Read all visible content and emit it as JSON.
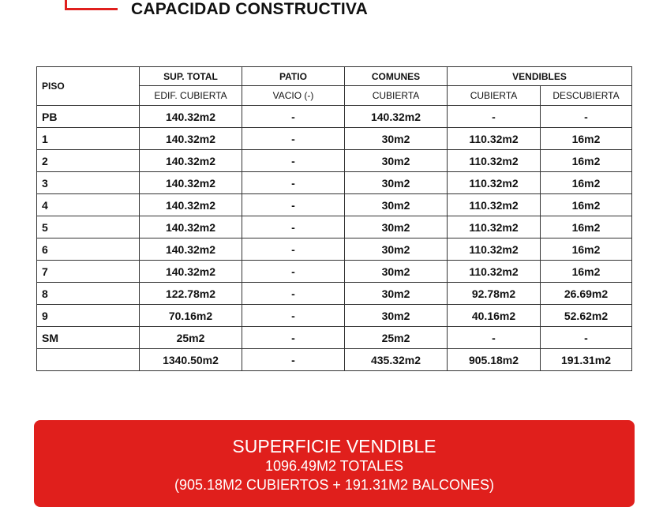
{
  "title": "CAPACIDAD CONSTRUCTIVA",
  "accent": "#e01f1c",
  "table": {
    "headers": {
      "piso": "PISO",
      "sup_total": "SUP. TOTAL",
      "patio": "PATIO",
      "comunes": "COMUNES",
      "vendibles": "VENDIBLES"
    },
    "subheaders": [
      "EDIF. CUBIERTA",
      "VACIO (-)",
      "CUBIERTA",
      "CUBIERTA",
      "DESCUBIERTA"
    ],
    "rows": [
      [
        "PB",
        "140.32m2",
        "-",
        "140.32m2",
        "-",
        "-"
      ],
      [
        "1",
        "140.32m2",
        "-",
        "30m2",
        "110.32m2",
        "16m2"
      ],
      [
        "2",
        "140.32m2",
        "-",
        "30m2",
        "110.32m2",
        "16m2"
      ],
      [
        "3",
        "140.32m2",
        "-",
        "30m2",
        "110.32m2",
        "16m2"
      ],
      [
        "4",
        "140.32m2",
        "-",
        "30m2",
        "110.32m2",
        "16m2"
      ],
      [
        "5",
        "140.32m2",
        "-",
        "30m2",
        "110.32m2",
        "16m2"
      ],
      [
        "6",
        "140.32m2",
        "-",
        "30m2",
        "110.32m2",
        "16m2"
      ],
      [
        "7",
        "140.32m2",
        "-",
        "30m2",
        "110.32m2",
        "16m2"
      ],
      [
        "8",
        "122.78m2",
        "-",
        "30m2",
        "92.78m2",
        "26.69m2"
      ],
      [
        "9",
        "70.16m2",
        "-",
        "30m2",
        "40.16m2",
        "52.62m2"
      ],
      [
        "SM",
        "25m2",
        "-",
        "25m2",
        "-",
        "-"
      ],
      [
        "",
        "1340.50m2",
        "-",
        "435.32m2",
        "905.18m2",
        "191.31m2"
      ]
    ]
  },
  "summary": {
    "heading": "SUPERFICIE VENDIBLE",
    "total": "1096.49M2 TOTALES",
    "detail": "(905.18M2 CUBIERTOS + 191.31M2 BALCONES)"
  }
}
